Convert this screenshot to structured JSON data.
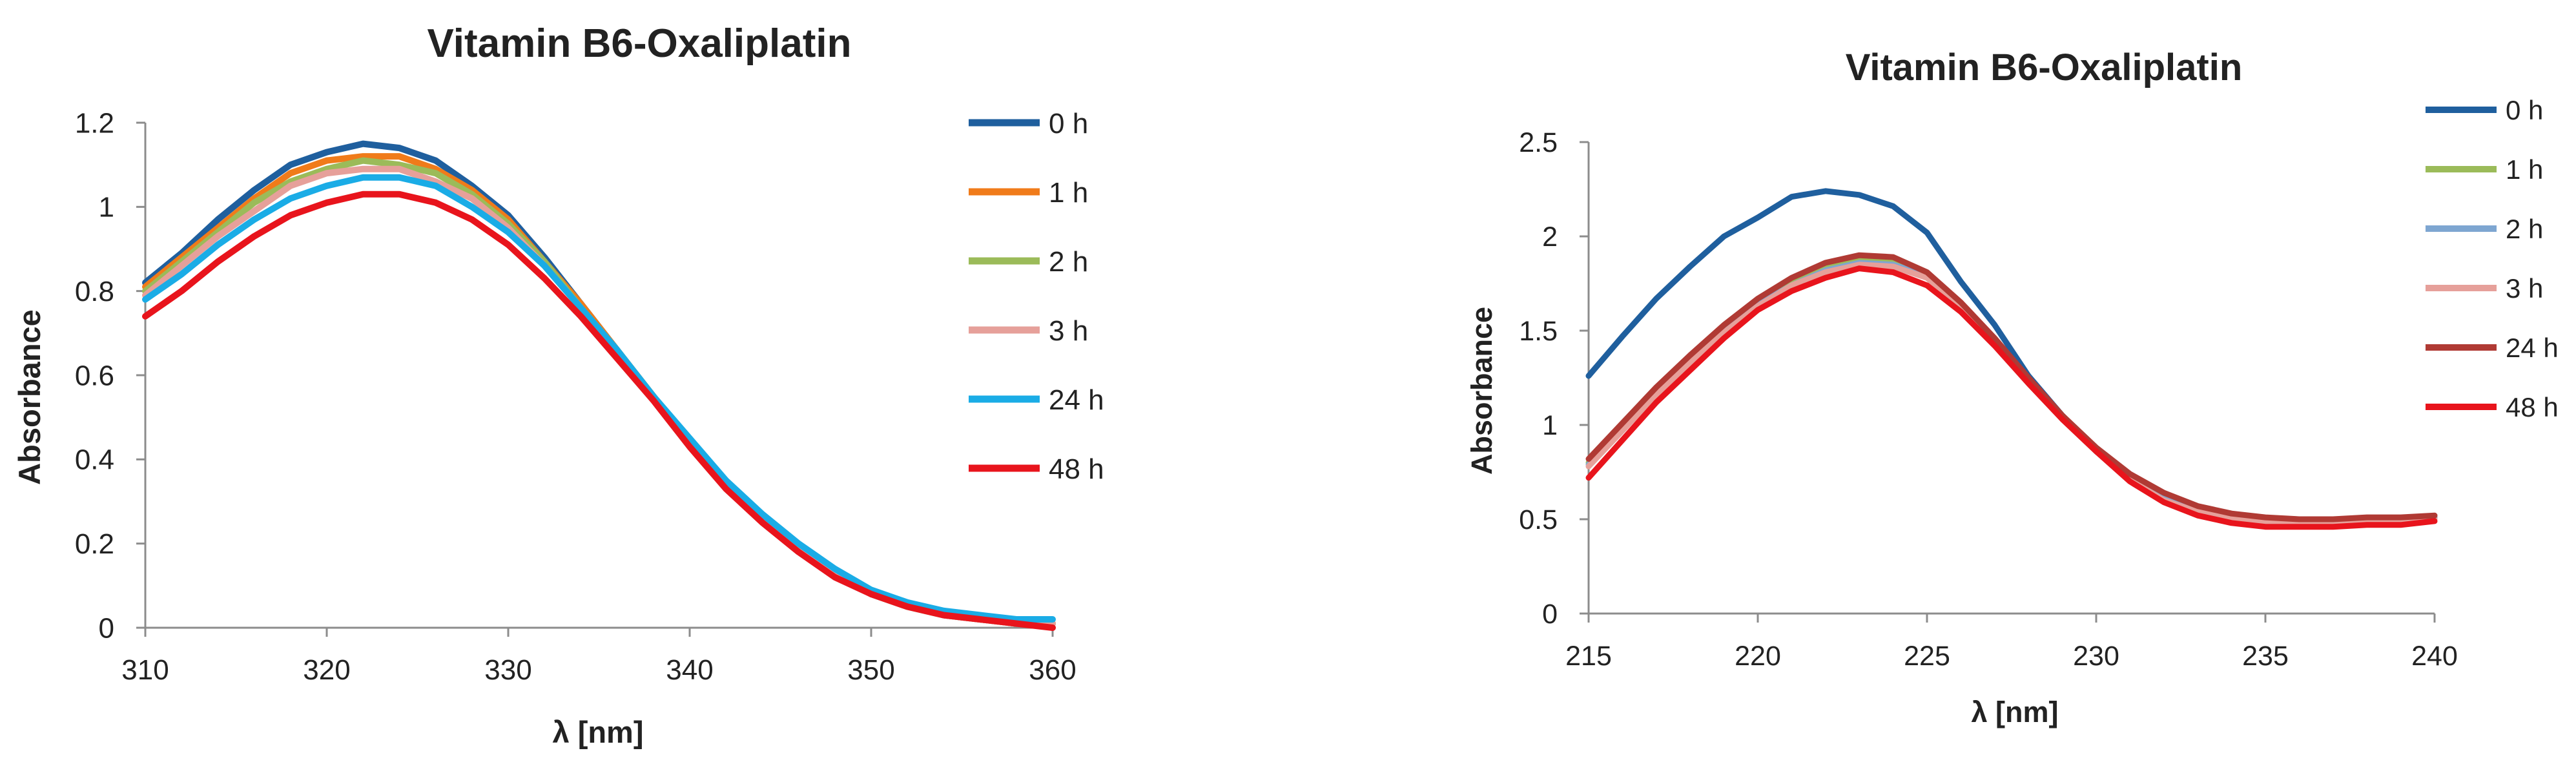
{
  "chart_data": [
    {
      "type": "line",
      "title": "Vitamin B6-Oxaliplatin",
      "xlabel": "λ [nm]",
      "ylabel": "Absorbance",
      "xlim": [
        310,
        360
      ],
      "ylim": [
        0,
        1.2
      ],
      "xticks": [
        310,
        320,
        330,
        340,
        350,
        360
      ],
      "xtick_labels": [
        "310",
        "320",
        "330",
        "340",
        "350",
        "360"
      ],
      "yticks": [
        0,
        0.2,
        0.4,
        0.6,
        0.8,
        1,
        1.2
      ],
      "ytick_labels": [
        "0",
        "0.2",
        "0.4",
        "0.6",
        "0.8",
        "1",
        "1.2"
      ],
      "grid": false,
      "legend": "right",
      "x": [
        310,
        312,
        314,
        316,
        318,
        320,
        322,
        324,
        326,
        328,
        330,
        332,
        334,
        336,
        338,
        340,
        342,
        344,
        346,
        348,
        350,
        352,
        354,
        356,
        358,
        360
      ],
      "series": [
        {
          "name": "0 h",
          "color": "#1f5f9e",
          "values": [
            0.82,
            0.89,
            0.97,
            1.04,
            1.1,
            1.13,
            1.15,
            1.14,
            1.11,
            1.05,
            0.98,
            0.88,
            0.77,
            0.66,
            0.55,
            0.44,
            0.34,
            0.26,
            0.19,
            0.13,
            0.08,
            0.05,
            0.03,
            0.02,
            0.01,
            0.01
          ]
        },
        {
          "name": "1 h",
          "color": "#f07b1a",
          "values": [
            0.81,
            0.88,
            0.95,
            1.02,
            1.08,
            1.11,
            1.12,
            1.12,
            1.09,
            1.04,
            0.97,
            0.87,
            0.77,
            0.66,
            0.55,
            0.44,
            0.34,
            0.26,
            0.19,
            0.13,
            0.08,
            0.05,
            0.03,
            0.02,
            0.01,
            0.01
          ]
        },
        {
          "name": "2 h",
          "color": "#9bbb59",
          "values": [
            0.8,
            0.87,
            0.94,
            1.01,
            1.06,
            1.09,
            1.11,
            1.1,
            1.08,
            1.03,
            0.96,
            0.87,
            0.76,
            0.66,
            0.55,
            0.44,
            0.34,
            0.26,
            0.19,
            0.13,
            0.08,
            0.05,
            0.03,
            0.02,
            0.01,
            0.01
          ]
        },
        {
          "name": "3 h",
          "color": "#e6a09a",
          "values": [
            0.79,
            0.86,
            0.93,
            0.99,
            1.05,
            1.08,
            1.09,
            1.09,
            1.06,
            1.02,
            0.95,
            0.86,
            0.76,
            0.65,
            0.55,
            0.44,
            0.34,
            0.26,
            0.19,
            0.13,
            0.08,
            0.05,
            0.03,
            0.02,
            0.01,
            0.01
          ]
        },
        {
          "name": "24 h",
          "color": "#1aace6",
          "values": [
            0.78,
            0.84,
            0.91,
            0.97,
            1.02,
            1.05,
            1.07,
            1.07,
            1.05,
            1.0,
            0.94,
            0.86,
            0.76,
            0.66,
            0.55,
            0.45,
            0.35,
            0.27,
            0.2,
            0.14,
            0.09,
            0.06,
            0.04,
            0.03,
            0.02,
            0.02
          ]
        },
        {
          "name": "48 h",
          "color": "#e8141c",
          "values": [
            0.74,
            0.8,
            0.87,
            0.93,
            0.98,
            1.01,
            1.03,
            1.03,
            1.01,
            0.97,
            0.91,
            0.83,
            0.74,
            0.64,
            0.54,
            0.43,
            0.33,
            0.25,
            0.18,
            0.12,
            0.08,
            0.05,
            0.03,
            0.02,
            0.01,
            0.0
          ]
        }
      ]
    },
    {
      "type": "line",
      "title": "Vitamin B6-Oxaliplatin",
      "xlabel": "λ [nm]",
      "ylabel": "Absorbance",
      "xlim": [
        215,
        240
      ],
      "ylim": [
        0,
        2.5
      ],
      "xticks": [
        215,
        220,
        225,
        230,
        235,
        240
      ],
      "xtick_labels": [
        "215",
        "220",
        "225",
        "230",
        "235",
        "240"
      ],
      "yticks": [
        0,
        0.5,
        1,
        1.5,
        2,
        2.5
      ],
      "ytick_labels": [
        "0",
        "0.5",
        "1",
        "1.5",
        "2",
        "2.5"
      ],
      "grid": false,
      "legend": "right",
      "x": [
        215,
        216,
        217,
        218,
        219,
        220,
        221,
        222,
        223,
        224,
        225,
        226,
        227,
        228,
        229,
        230,
        231,
        232,
        233,
        234,
        235,
        236,
        237,
        238,
        239,
        240
      ],
      "series": [
        {
          "name": "0 h",
          "color": "#1f5f9e",
          "values": [
            1.26,
            1.47,
            1.67,
            1.84,
            2.0,
            2.1,
            2.21,
            2.24,
            2.22,
            2.16,
            2.02,
            1.76,
            1.53,
            1.26,
            1.05,
            0.86,
            0.72,
            0.62,
            0.55,
            0.51,
            0.49,
            0.49,
            0.49,
            0.5,
            0.5,
            0.51
          ]
        },
        {
          "name": "1 h",
          "color": "#9bbb59",
          "values": [
            0.8,
            0.99,
            1.18,
            1.35,
            1.51,
            1.65,
            1.75,
            1.83,
            1.87,
            1.86,
            1.8,
            1.64,
            1.45,
            1.24,
            1.04,
            0.87,
            0.72,
            0.61,
            0.55,
            0.51,
            0.49,
            0.49,
            0.49,
            0.5,
            0.5,
            0.51
          ]
        },
        {
          "name": "2 h",
          "color": "#7ea6d1",
          "values": [
            0.79,
            0.98,
            1.17,
            1.34,
            1.5,
            1.64,
            1.74,
            1.82,
            1.86,
            1.85,
            1.79,
            1.63,
            1.45,
            1.24,
            1.04,
            0.87,
            0.72,
            0.61,
            0.55,
            0.51,
            0.49,
            0.49,
            0.49,
            0.5,
            0.5,
            0.51
          ]
        },
        {
          "name": "3 h",
          "color": "#e6a09a",
          "values": [
            0.78,
            0.97,
            1.16,
            1.33,
            1.49,
            1.63,
            1.74,
            1.81,
            1.85,
            1.84,
            1.78,
            1.62,
            1.44,
            1.23,
            1.03,
            0.86,
            0.71,
            0.6,
            0.54,
            0.5,
            0.48,
            0.48,
            0.48,
            0.49,
            0.49,
            0.5
          ]
        },
        {
          "name": "24 h",
          "color": "#b03a34",
          "values": [
            0.82,
            1.01,
            1.2,
            1.37,
            1.53,
            1.67,
            1.78,
            1.86,
            1.9,
            1.89,
            1.81,
            1.65,
            1.46,
            1.25,
            1.05,
            0.88,
            0.74,
            0.64,
            0.57,
            0.53,
            0.51,
            0.5,
            0.5,
            0.51,
            0.51,
            0.52
          ]
        },
        {
          "name": "48 h",
          "color": "#e8141c",
          "values": [
            0.72,
            0.92,
            1.12,
            1.29,
            1.46,
            1.61,
            1.71,
            1.78,
            1.83,
            1.81,
            1.74,
            1.6,
            1.42,
            1.22,
            1.03,
            0.86,
            0.7,
            0.59,
            0.52,
            0.48,
            0.46,
            0.46,
            0.46,
            0.47,
            0.47,
            0.49
          ]
        }
      ]
    }
  ]
}
